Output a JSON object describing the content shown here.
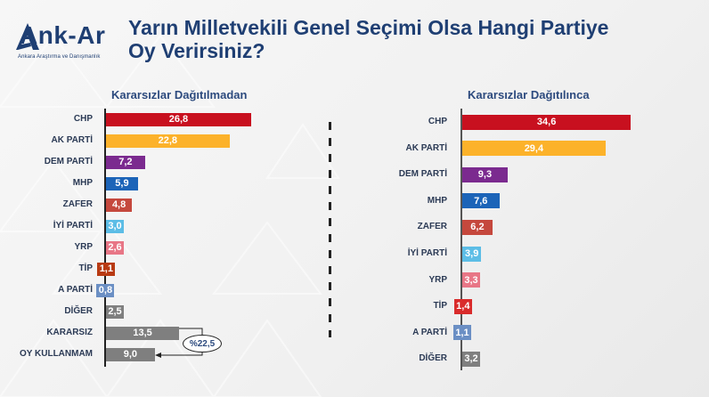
{
  "header": {
    "logo_text": "Ank-Ar",
    "logo_subtitle": "Ankara Araştırma ve Danışmanlık",
    "title_line1": "Yarın Milletvekili Genel Seçimi Olsa Hangi Partiye",
    "title_line2": "Oy Verirsiniz?"
  },
  "colors": {
    "CHP": "#c8101f",
    "AK PARTİ": "#fcb22a",
    "DEM PARTİ": "#7b2a8f",
    "MHP": "#1c64b8",
    "ZAFER": "#c5483d",
    "İYİ PARTİ": "#5cbde6",
    "YRP": "#e87686",
    "TİP_left": "#b83a12",
    "TİP_right": "#d92b2b",
    "A PARTİ": "#6b8fc4",
    "DİĞER": "#7f7f7f",
    "KARARSIZ": "#7f7f7f",
    "OY KULLANMAM": "#7f7f7f",
    "title": "#1f3f73"
  },
  "annotation": {
    "label": "%22,5",
    "note": "KARARSIZ + OY KULLANMAM"
  },
  "chart_data": [
    {
      "type": "bar",
      "orientation": "horizontal",
      "title": "Kararsızlar Dağıtılmadan",
      "categories": [
        "CHP",
        "AK PARTİ",
        "DEM PARTİ",
        "MHP",
        "ZAFER",
        "İYİ PARTİ",
        "YRP",
        "TİP",
        "A PARTİ",
        "DİĞER",
        "KARARSIZ",
        "OY KULLANMAM"
      ],
      "values": [
        26.8,
        22.8,
        7.2,
        5.9,
        4.8,
        3.0,
        2.6,
        1.1,
        0.8,
        2.5,
        13.5,
        9.0
      ],
      "value_labels": [
        "26,8",
        "22,8",
        "7,2",
        "5,9",
        "4,8",
        "3,0",
        "2,6",
        "1,1",
        "0,8",
        "2,5",
        "13,5",
        "9,0"
      ],
      "colors": [
        "#c8101f",
        "#fcb22a",
        "#7b2a8f",
        "#1c64b8",
        "#c5483d",
        "#5cbde6",
        "#e87686",
        "#b83a12",
        "#6b8fc4",
        "#7f7f7f",
        "#7f7f7f",
        "#7f7f7f"
      ],
      "annotation": "%22,5 (KARARSIZ + OY KULLANMAM)",
      "xlabel": "",
      "ylabel": "",
      "grid": false,
      "legend": "none"
    },
    {
      "type": "bar",
      "orientation": "horizontal",
      "title": "Kararsızlar Dağıtılınca",
      "categories": [
        "CHP",
        "AK PARTİ",
        "DEM PARTİ",
        "MHP",
        "ZAFER",
        "İYİ PARTİ",
        "YRP",
        "TİP",
        "A PARTİ",
        "DİĞER"
      ],
      "values": [
        34.6,
        29.4,
        9.3,
        7.6,
        6.2,
        3.9,
        3.3,
        1.4,
        1.1,
        3.2
      ],
      "value_labels": [
        "34,6",
        "29,4",
        "9,3",
        "7,6",
        "6,2",
        "3,9",
        "3,3",
        "1,4",
        "1,1",
        "3,2"
      ],
      "colors": [
        "#c8101f",
        "#fcb22a",
        "#7b2a8f",
        "#1c64b8",
        "#c5483d",
        "#5cbde6",
        "#e87686",
        "#d92b2b",
        "#6b8fc4",
        "#7f7f7f"
      ],
      "xlabel": "",
      "ylabel": "",
      "grid": false,
      "legend": "none"
    }
  ]
}
